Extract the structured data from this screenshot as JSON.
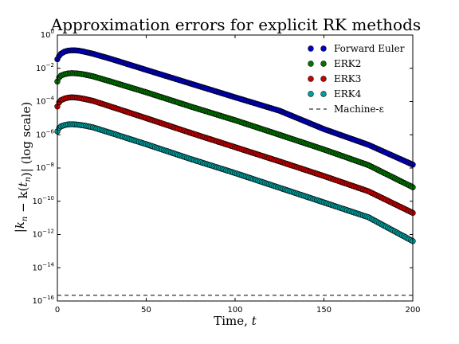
{
  "chart_data": {
    "type": "scatter",
    "title": "Approximation errors for explicit RK methods",
    "xlabel": "Time, t",
    "ylabel": "|k_n − k(t_n)| (log scale)",
    "xlim": [
      0,
      200
    ],
    "ylim": [
      1e-16,
      1
    ],
    "yscale": "log",
    "xticks": [
      "0",
      "50",
      "100",
      "150",
      "200"
    ],
    "yticks": [
      {
        "exp": 0,
        "label": "10^0"
      },
      {
        "exp": -2,
        "label": "10^-2"
      },
      {
        "exp": -4,
        "label": "10^-4"
      },
      {
        "exp": -6,
        "label": "10^-6"
      },
      {
        "exp": -8,
        "label": "10^-8"
      },
      {
        "exp": -10,
        "label": "10^-10"
      },
      {
        "exp": -12,
        "label": "10^-12"
      },
      {
        "exp": -14,
        "label": "10^-14"
      },
      {
        "exp": -16,
        "label": "10^-16"
      }
    ],
    "grid": false,
    "legend_position": "top-right",
    "series": [
      {
        "name": "Forward Euler",
        "color": "#0000cc",
        "x": [
          0,
          1,
          2,
          4,
          6,
          8,
          10,
          12,
          15,
          20,
          30,
          50,
          75,
          100,
          125,
          150,
          175,
          200
        ],
        "y": [
          0.035,
          0.055,
          0.075,
          0.1,
          0.115,
          0.12,
          0.12,
          0.115,
          0.1,
          0.075,
          0.037,
          0.008,
          0.0012,
          0.00018,
          2.8e-05,
          2.2e-06,
          2.5e-07,
          1.6e-08
        ]
      },
      {
        "name": "ERK2",
        "color": "#007700",
        "x": [
          0,
          1,
          2,
          4,
          6,
          8,
          10,
          12,
          15,
          20,
          30,
          50,
          75,
          100,
          125,
          150,
          175,
          200
        ],
        "y": [
          0.0016,
          0.0028,
          0.0036,
          0.0044,
          0.0049,
          0.0051,
          0.005,
          0.0048,
          0.0043,
          0.0033,
          0.0016,
          0.00036,
          5e-05,
          7.5e-06,
          1e-06,
          1.3e-07,
          1.5e-08,
          7e-10
        ]
      },
      {
        "name": "ERK3",
        "color": "#cc0000",
        "x": [
          0,
          1,
          2,
          4,
          6,
          8,
          10,
          12,
          15,
          20,
          30,
          50,
          75,
          100,
          125,
          150,
          175,
          200
        ],
        "y": [
          5e-05,
          9e-05,
          0.00012,
          0.00015,
          0.00017,
          0.00018,
          0.000175,
          0.000165,
          0.000145,
          0.00011,
          5e-05,
          1e-05,
          1.3e-06,
          1.8e-07,
          2.5e-08,
          3.3e-09,
          4e-10,
          2e-11
        ]
      },
      {
        "name": "ERK4",
        "color": "#00a0a0",
        "x": [
          0,
          1,
          2,
          4,
          6,
          8,
          10,
          12,
          15,
          20,
          30,
          50,
          75,
          100,
          125,
          150,
          175,
          200
        ],
        "y": [
          1.6e-06,
          2.6e-06,
          3.2e-06,
          3.8e-06,
          4.2e-06,
          4.3e-06,
          4.2e-06,
          4e-06,
          3.6e-06,
          2.8e-06,
          1.3e-06,
          2.7e-07,
          3.5e-08,
          5e-09,
          6.5e-10,
          8.5e-11,
          1.1e-11,
          4e-13
        ]
      },
      {
        "name": "Machine-ε",
        "color": "#000000",
        "style": "dashed",
        "x": [
          0,
          200
        ],
        "y": [
          2.2e-16,
          2.2e-16
        ]
      }
    ]
  }
}
